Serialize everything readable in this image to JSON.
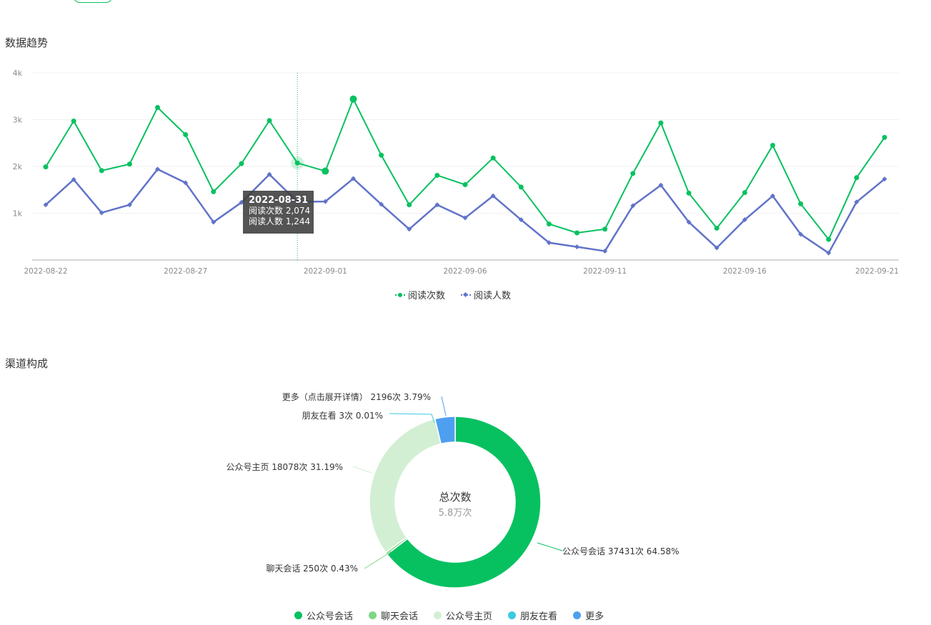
{
  "sections": {
    "trend_title": "数据趋势",
    "channel_title": "渠道构成"
  },
  "chart_data": [
    {
      "type": "line",
      "y_ticks": [
        "1k",
        "2k",
        "3k",
        "4k"
      ],
      "ylim": [
        0,
        4000
      ],
      "x_tick_labels": [
        "2022-08-22",
        "2022-08-27",
        "2022-09-01",
        "2022-09-06",
        "2022-09-11",
        "2022-09-16",
        "2022-09-21"
      ],
      "x": [
        "2022-08-22",
        "2022-08-23",
        "2022-08-24",
        "2022-08-25",
        "2022-08-26",
        "2022-08-27",
        "2022-08-28",
        "2022-08-29",
        "2022-08-30",
        "2022-08-31",
        "2022-09-01",
        "2022-09-02",
        "2022-09-03",
        "2022-09-04",
        "2022-09-05",
        "2022-09-06",
        "2022-09-07",
        "2022-09-08",
        "2022-09-09",
        "2022-09-10",
        "2022-09-11",
        "2022-09-12",
        "2022-09-13",
        "2022-09-14",
        "2022-09-15",
        "2022-09-16",
        "2022-09-17",
        "2022-09-18",
        "2022-09-19",
        "2022-09-20",
        "2022-09-21"
      ],
      "series": [
        {
          "name": "阅读次数",
          "color": "#07c160",
          "marker": "circle",
          "values": [
            1990,
            2970,
            1910,
            2050,
            3260,
            2680,
            1460,
            2060,
            2980,
            2074,
            1900,
            3440,
            2240,
            1180,
            1810,
            1610,
            2180,
            1560,
            770,
            580,
            660,
            1850,
            2930,
            1430,
            680,
            1440,
            2450,
            1200,
            440,
            1760,
            2620
          ]
        },
        {
          "name": "阅读人数",
          "color": "#6173c9",
          "marker": "diamond",
          "values": [
            1180,
            1720,
            1010,
            1180,
            1940,
            1650,
            810,
            1230,
            1830,
            1244,
            1250,
            1740,
            1190,
            660,
            1180,
            900,
            1370,
            860,
            370,
            280,
            190,
            1160,
            1600,
            810,
            260,
            860,
            1370,
            550,
            150,
            1240,
            1730
          ]
        }
      ],
      "tooltip": {
        "date": "2022-08-31",
        "line1": "阅读次数 2,074",
        "line2": "阅读人数 1,244"
      }
    },
    {
      "type": "pie",
      "center_title": "总次数",
      "center_value": "5.8万次",
      "slices": [
        {
          "name": "公众号会话",
          "value": 37431,
          "label": "公众号会话 37431次 64.58%",
          "color": "#07c160"
        },
        {
          "name": "聊天会话",
          "value": 250,
          "label": "聊天会话 250次 0.43%",
          "color": "#7ed685"
        },
        {
          "name": "公众号主页",
          "value": 18078,
          "label": "公众号主页 18078次 31.19%",
          "color": "#d2efd3"
        },
        {
          "name": "朋友在看",
          "value": 3,
          "label": "朋友在看 3次 0.01%",
          "color": "#3dc8e2"
        },
        {
          "name": "更多",
          "value": 2196,
          "label": "更多（点击展开详情） 2196次 3.79%",
          "color": "#4e9ff0"
        }
      ]
    }
  ]
}
